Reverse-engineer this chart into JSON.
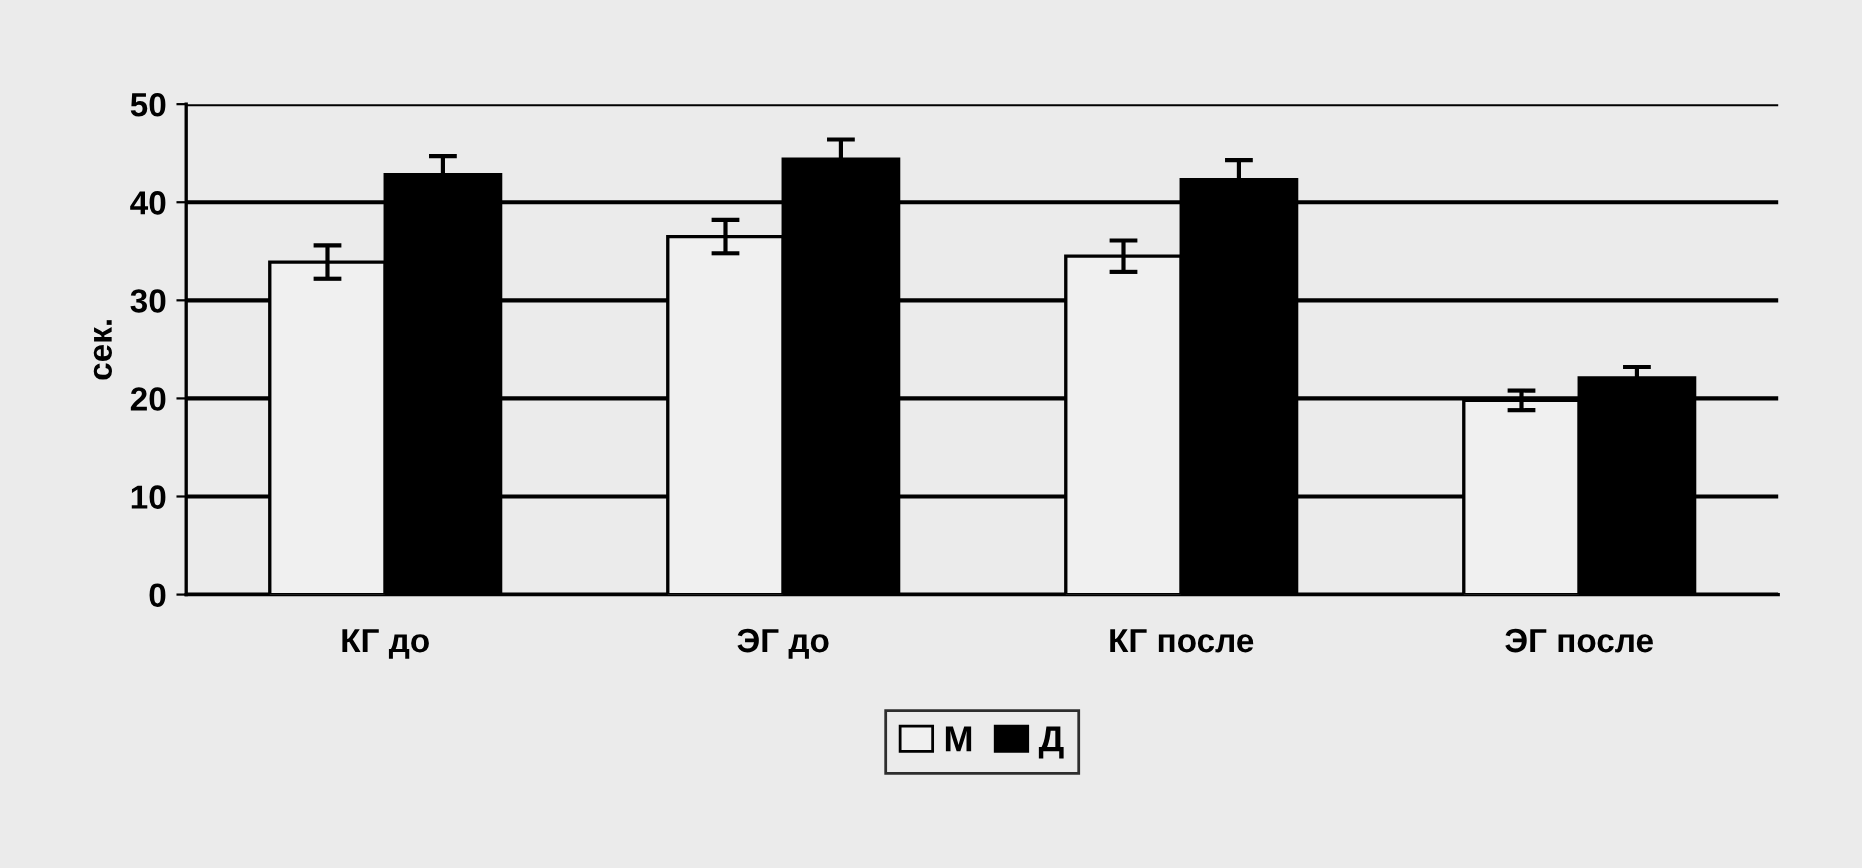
{
  "chart_data": {
    "type": "bar",
    "ylabel": "сек.",
    "categories": [
      "КГ до",
      "ЭГ до",
      "КГ после",
      "ЭГ после"
    ],
    "series": [
      {
        "name": "М",
        "color": "#f0f0f0",
        "values": [
          33.9,
          36.5,
          34.5,
          19.8
        ],
        "errors": [
          1.7,
          1.7,
          1.6,
          1.0
        ]
      },
      {
        "name": "Д",
        "color": "#000000",
        "values": [
          42.8,
          44.4,
          42.3,
          22.1
        ],
        "errors": [
          1.9,
          2.0,
          2.0,
          1.1
        ]
      }
    ],
    "ylim": [
      0,
      50
    ],
    "yticks": [
      0,
      10,
      20,
      30,
      40,
      50
    ],
    "grid": "y",
    "legend": "bottom"
  }
}
